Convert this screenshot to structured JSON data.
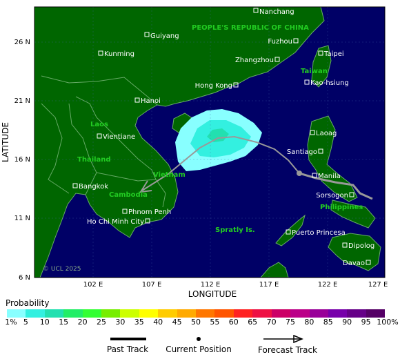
{
  "axes": {
    "ylabel": "LATITUDE",
    "xlabel": "LONGITUDE",
    "lat_ticks": [
      "26 N",
      "21 N",
      "16 N",
      "11 N",
      "6 N"
    ],
    "lon_ticks": [
      "102 E",
      "107 E",
      "112 E",
      "117 E",
      "122 E",
      "127 E"
    ]
  },
  "regions": [
    "PEOPLE'S REPUBLIC OF CHINA",
    "Laos",
    "Thailand",
    "Vietnam",
    "Cambodia",
    "Taiwan",
    "Philippines",
    "Spratly Is."
  ],
  "cities": [
    "Nanchang",
    "Guiyang",
    "Fuzhou",
    "Kunming",
    "Taipei",
    "Zhangzhou",
    "Hong Kong",
    "Kao-hsiung",
    "Hanoi",
    "Vientiane",
    "Laoag",
    "Santiago",
    "Manila",
    "Bangkok",
    "Sorsogon",
    "Phnom Penh",
    "Ho Chi Minh City",
    "Puerto Princesa",
    "Dipolog",
    "Davao"
  ],
  "copyright": "© UCL 2025",
  "legend": {
    "title": "Probability",
    "labels": [
      "1%",
      "5",
      "10",
      "15",
      "20",
      "25",
      "30",
      "35",
      "40",
      "45",
      "50",
      "55",
      "60",
      "65",
      "70",
      "75",
      "80",
      "85",
      "90",
      "95",
      "100%"
    ],
    "colors": [
      "#88ffff",
      "#33f0e0",
      "#22e0b0",
      "#22ee66",
      "#33ff33",
      "#77ee00",
      "#ccff00",
      "#ffff00",
      "#ffcc00",
      "#ffaa00",
      "#ff7700",
      "#ff5500",
      "#ff2222",
      "#ee1144",
      "#cc0066",
      "#bb0088",
      "#990099",
      "#7700aa",
      "#660088",
      "#550066"
    ],
    "past_track": "Past Track",
    "current_position": "Current Position",
    "forecast_track": "Forecast Track"
  },
  "colors": {
    "ocean": "#000066",
    "land": "#006600",
    "border": "#66aa66",
    "track": "#999999"
  }
}
